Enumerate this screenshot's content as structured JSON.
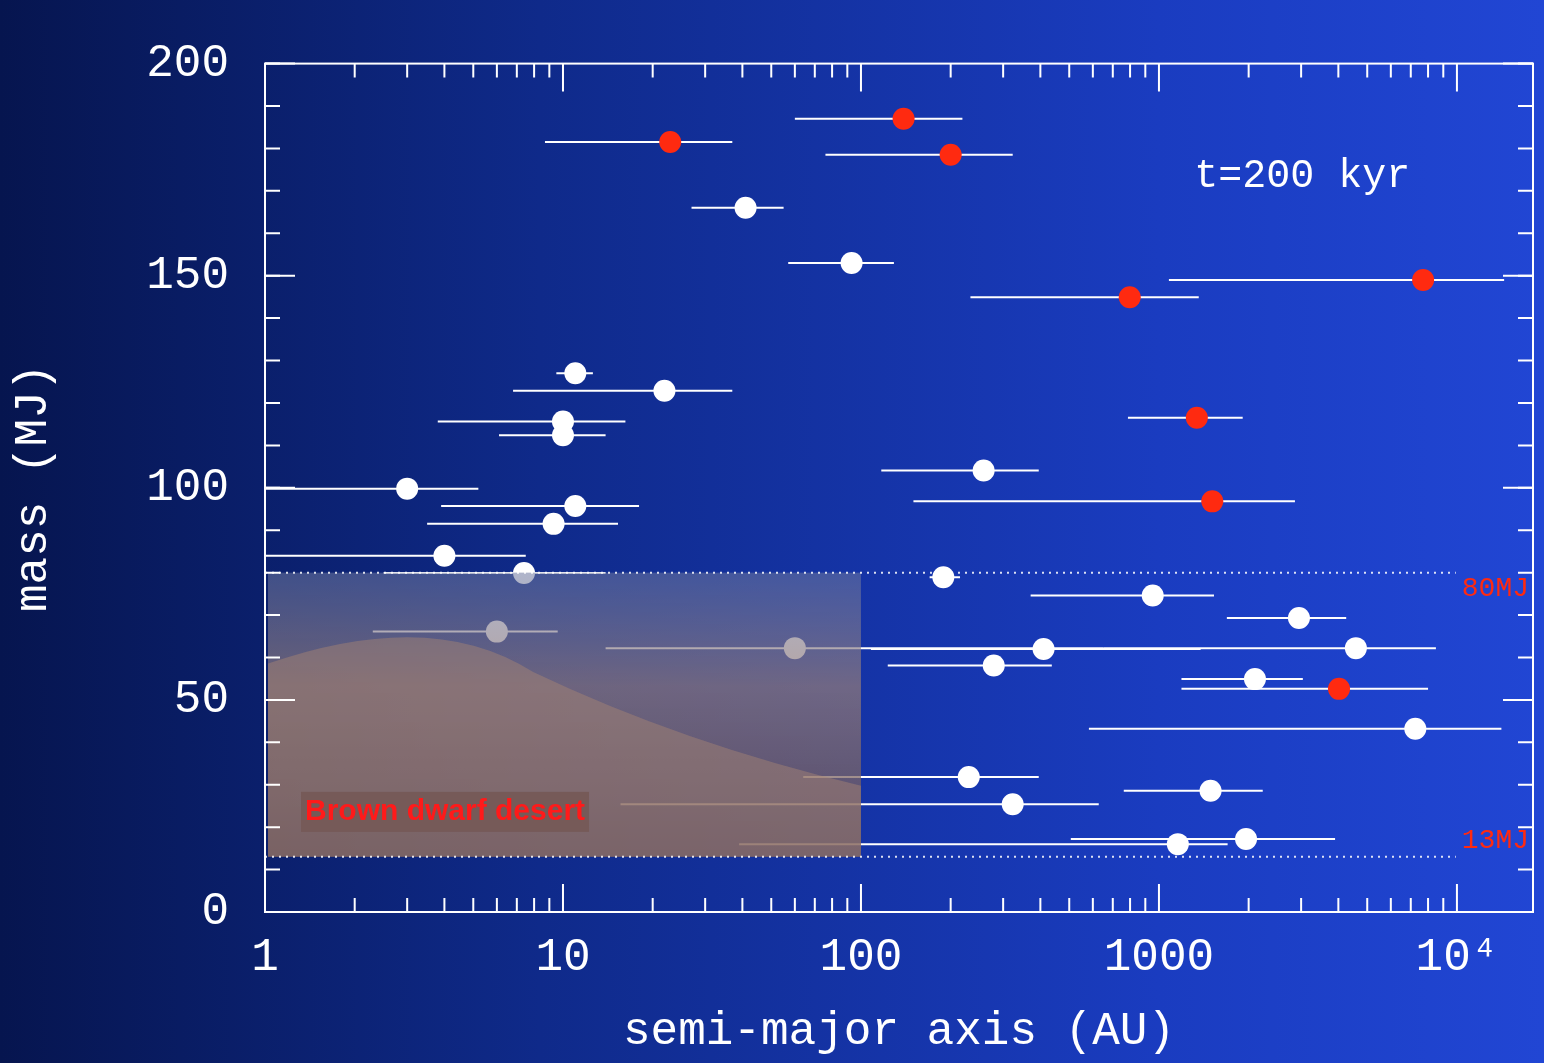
{
  "chart_data": {
    "type": "scatter",
    "xlabel": "semi-major axis (AU)",
    "ylabel": "mass (MJ)",
    "annotation": "t=200 kyr",
    "log": "x",
    "grid": false,
    "xlim": [
      1,
      18000
    ],
    "xticks": [
      1,
      10,
      100,
      1000,
      {
        "value": 10000,
        "label": "10⁴"
      }
    ],
    "ylim": [
      0,
      200
    ],
    "yticks": [
      0,
      50,
      100,
      150,
      200
    ],
    "hlines": [
      {
        "y": 80,
        "label": "80MJ"
      },
      {
        "y": 13,
        "label": "13MJ"
      }
    ],
    "region": {
      "text": "Brown dwarf desert",
      "xlim": [
        1,
        100
      ],
      "ylim": [
        13,
        80
      ]
    },
    "series": [
      {
        "color": "#ffffff",
        "marker": "circle",
        "x": [
          41,
          93,
          11,
          21.9,
          10,
          10,
          258,
          3.0,
          11,
          9.3,
          4.0,
          7.4,
          189,
          6.0,
          60,
          410,
          4580,
          279,
          953,
          2950,
          2100,
          7250,
          230,
          323,
          1490,
          1157,
          1960
        ],
        "values": [
          166,
          153,
          127,
          122.9,
          115.6,
          112.4,
          104.1,
          99.8,
          95.7,
          91.5,
          84,
          79.9,
          78.9,
          66.1,
          62.2,
          62,
          62.2,
          58.1,
          74.6,
          69.3,
          54.9,
          43.2,
          31.8,
          25.4,
          28.6,
          16.0,
          17.2
        ],
        "x_low": [
          27,
          57,
          9.5,
          6.8,
          3.8,
          6.1,
          117,
          1.0,
          3.9,
          3.5,
          1.0,
          2.5,
          170,
          2.3,
          13.9,
          108,
          653,
          123,
          371,
          1690,
          1190,
          582,
          64,
          15.6,
          762,
          39,
          506
        ],
        "x_high": [
          55,
          129,
          12.6,
          37,
          16.2,
          13.9,
          395,
          5.2,
          18,
          15.3,
          7.5,
          13.9,
          215,
          9.6,
          653,
          1380,
          8500,
          437,
          1530,
          4250,
          3040,
          14100,
          395,
          628,
          2230,
          1700,
          3900
        ]
      },
      {
        "color": "#ff2a10",
        "marker": "circle",
        "x": [
          22.9,
          139,
          200,
          798,
          7700,
          1340,
          1510,
          4020
        ],
        "values": [
          181.5,
          187,
          178.5,
          144.9,
          149,
          116.5,
          96.8,
          52.6
        ],
        "x_low": [
          8.7,
          60,
          76,
          233,
          1080,
          787,
          150,
          1190
        ],
        "x_high": [
          37,
          219,
          323,
          1360,
          14400,
          1910,
          2860,
          8000
        ]
      }
    ]
  }
}
